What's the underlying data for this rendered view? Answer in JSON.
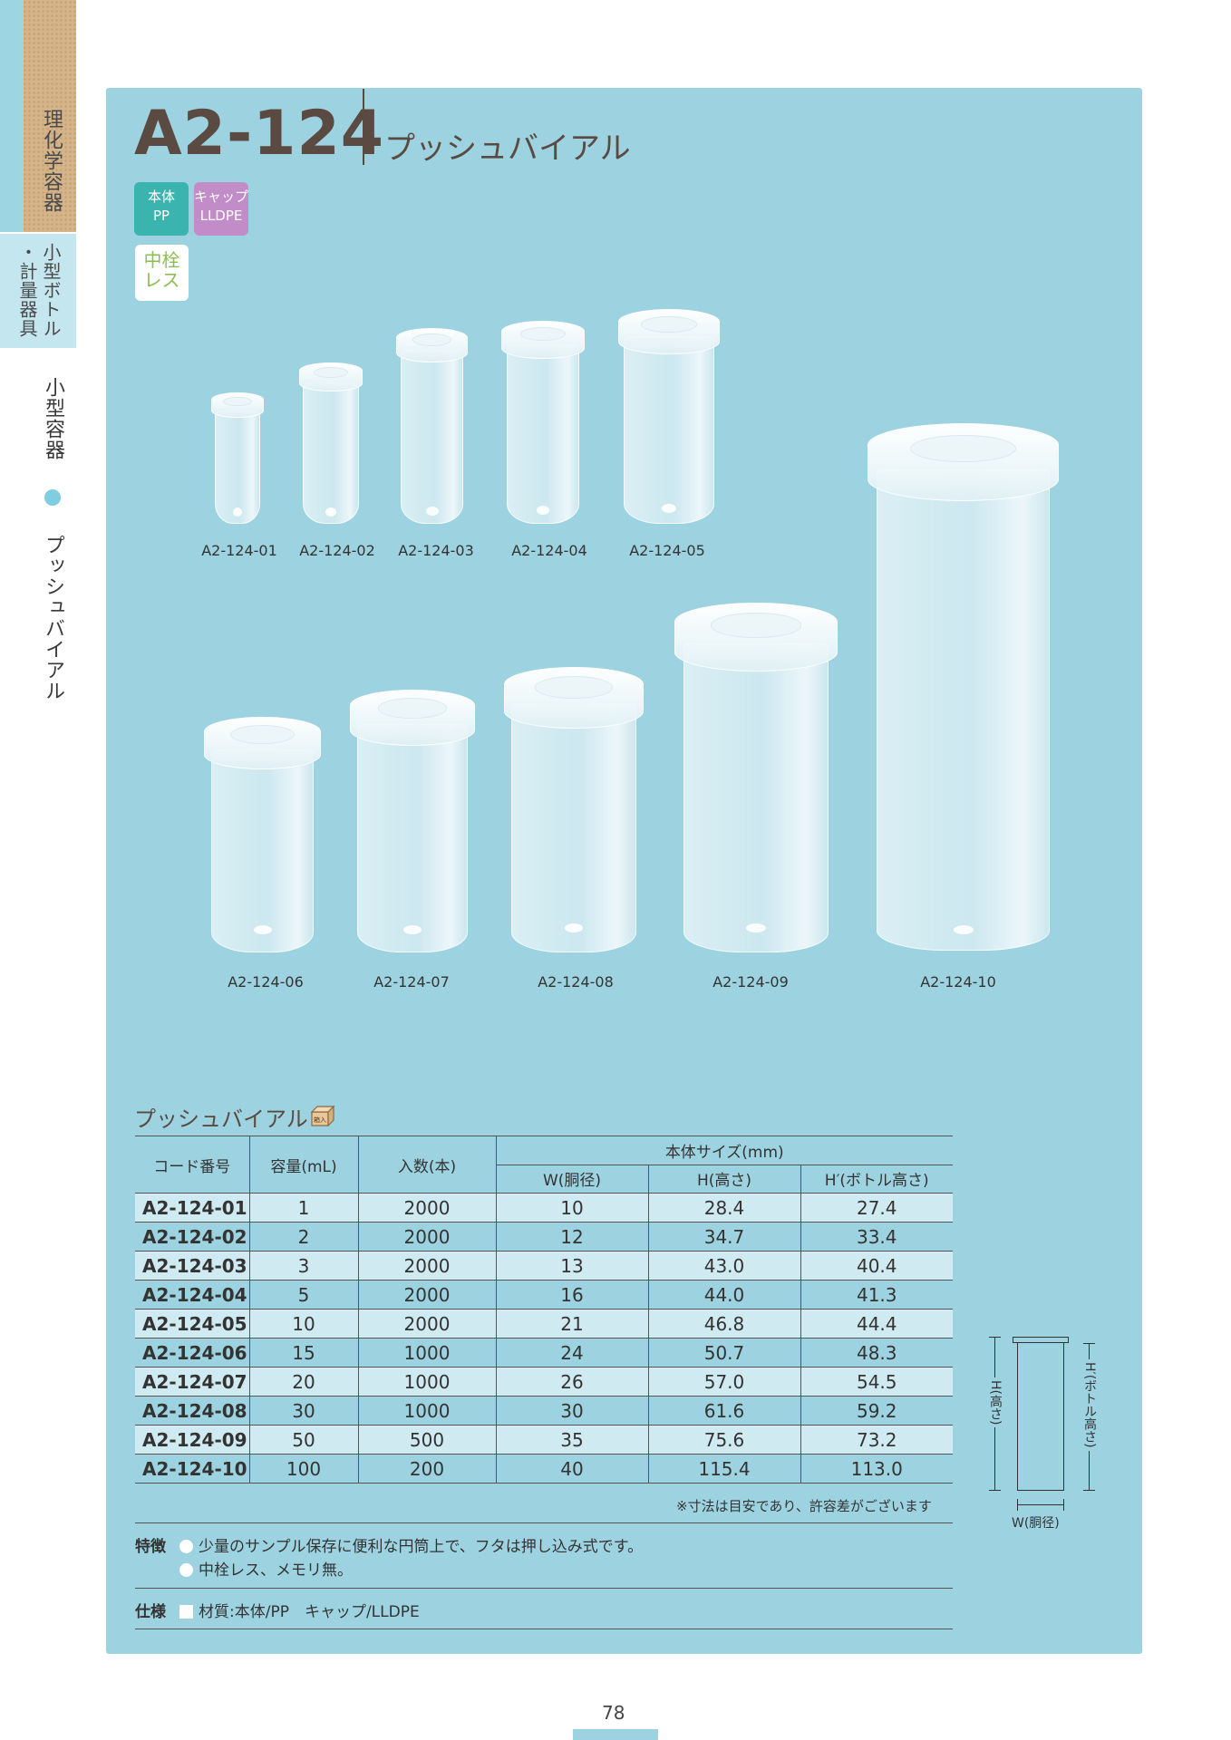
{
  "side_tabs": {
    "category": "理化学容器",
    "subcategory_line1": "小型ボトル",
    "subcategory_line2": "・計量器具",
    "section_name": "小型容器",
    "section_item": "プッシュバイアル"
  },
  "header": {
    "code": "A2-124",
    "name": "プッシュバイアル"
  },
  "badges": {
    "body_label": "本体",
    "body_material": "PP",
    "cap_label": "キャップ",
    "cap_material": "LLDPE",
    "nocore_line1": "中栓",
    "nocore_line2": "レス"
  },
  "products_row1": [
    "A2-124-01",
    "A2-124-02",
    "A2-124-03",
    "A2-124-04",
    "A2-124-05"
  ],
  "products_row2": [
    "A2-124-06",
    "A2-124-07",
    "A2-124-08",
    "A2-124-09",
    "A2-124-10"
  ],
  "table": {
    "title": "プッシュバイアル",
    "box_icon_label": "箱入",
    "headers": {
      "code": "コード番号",
      "capacity": "容量(mL)",
      "quantity": "入数(本)",
      "body_size": "本体サイズ(mm)",
      "w": "W(胴径)",
      "h": "H(高さ)",
      "h2": "H′(ボトル高さ)"
    },
    "rows": [
      {
        "code": "A2-124-01",
        "capacity": "1",
        "quantity": "2000",
        "w": "10",
        "h": "28.4",
        "h2": "27.4"
      },
      {
        "code": "A2-124-02",
        "capacity": "2",
        "quantity": "2000",
        "w": "12",
        "h": "34.7",
        "h2": "33.4"
      },
      {
        "code": "A2-124-03",
        "capacity": "3",
        "quantity": "2000",
        "w": "13",
        "h": "43.0",
        "h2": "40.4"
      },
      {
        "code": "A2-124-04",
        "capacity": "5",
        "quantity": "2000",
        "w": "16",
        "h": "44.0",
        "h2": "41.3"
      },
      {
        "code": "A2-124-05",
        "capacity": "10",
        "quantity": "2000",
        "w": "21",
        "h": "46.8",
        "h2": "44.4"
      },
      {
        "code": "A2-124-06",
        "capacity": "15",
        "quantity": "1000",
        "w": "24",
        "h": "50.7",
        "h2": "48.3"
      },
      {
        "code": "A2-124-07",
        "capacity": "20",
        "quantity": "1000",
        "w": "26",
        "h": "57.0",
        "h2": "54.5"
      },
      {
        "code": "A2-124-08",
        "capacity": "30",
        "quantity": "1000",
        "w": "30",
        "h": "61.6",
        "h2": "59.2"
      },
      {
        "code": "A2-124-09",
        "capacity": "50",
        "quantity": "500",
        "w": "35",
        "h": "75.6",
        "h2": "73.2"
      },
      {
        "code": "A2-124-10",
        "capacity": "100",
        "quantity": "200",
        "w": "40",
        "h": "115.4",
        "h2": "113.0"
      }
    ],
    "note": "※寸法は目安であり、許容差がございます"
  },
  "features": {
    "label": "特徴",
    "items": [
      "少量のサンプル保存に便利な円筒上で、フタは押し込み式です。",
      "中栓レス、メモリ無。"
    ]
  },
  "spec": {
    "label": "仕様",
    "text": "材質:本体/PP　キャップ/LLDPE"
  },
  "diagram": {
    "h_label": "H(高さ)",
    "h2_label": "H′(ボトル高さ)",
    "w_label": "W(胴径)"
  },
  "page_number": "78"
}
